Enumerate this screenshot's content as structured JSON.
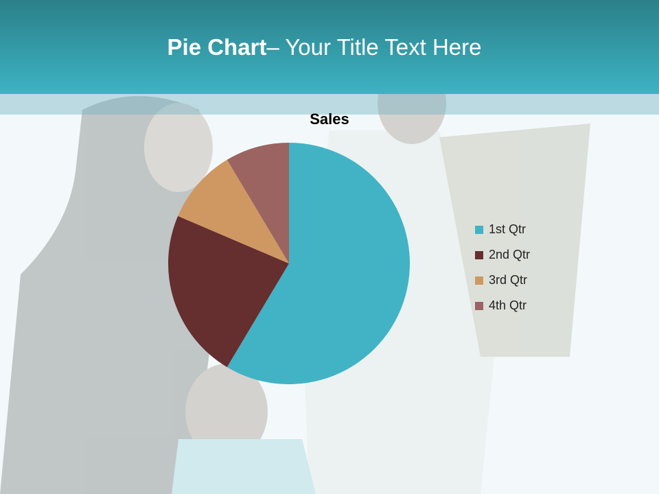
{
  "slide": {
    "title_bold": "Pie Chart",
    "title_rest": "– Your Title Text Here"
  },
  "colors": {
    "header": "#3db3c3",
    "background": "#f3f9fa"
  },
  "chart_data": {
    "type": "pie",
    "title": "Sales",
    "categories": [
      "1st Qtr",
      "2nd Qtr",
      "3rd Qtr",
      "4th Qtr"
    ],
    "values": [
      8.2,
      3.2,
      1.4,
      1.2
    ],
    "colors": [
      "#41b3c5",
      "#652f2f",
      "#cf9862",
      "#9c6461"
    ],
    "start_angle": 0,
    "direction": "clockwise",
    "legend": "right"
  }
}
